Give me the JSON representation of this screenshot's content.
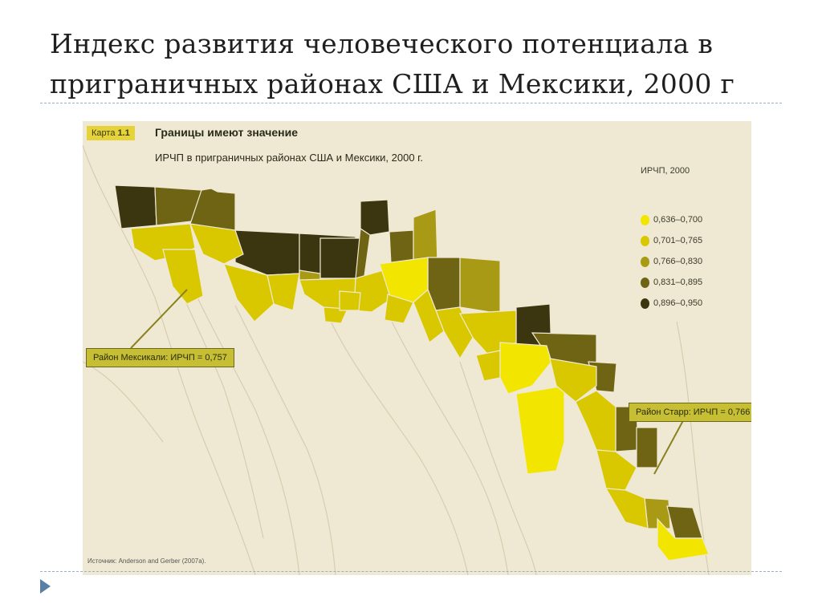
{
  "slide": {
    "title_line1": "Индекс развития человеческого потенциала в",
    "title_line2": "приграничных районах США и Мексики, 2000 г"
  },
  "map": {
    "tag_prefix": "Карта",
    "tag_number": "1.1",
    "heading": "Границы имеют значение",
    "subheading": "ИРЧП в приграничных районах США и Мексики, 2000 г.",
    "legend": {
      "title": "ИРЧП, 2000",
      "items": [
        {
          "label": "0,636–0,700",
          "color": "#f2e600"
        },
        {
          "label": "0,701–0,765",
          "color": "#d9c800"
        },
        {
          "label": "0,766–0,830",
          "color": "#a89a14"
        },
        {
          "label": "0,831–0,895",
          "color": "#6e6414"
        },
        {
          "label": "0,896–0,950",
          "color": "#3c3610"
        }
      ]
    },
    "callouts": {
      "mexicali": "Район Мексикали: ИРЧП = 0,757",
      "starr": "Район Старр: ИРЧП = 0,766"
    },
    "source": "Источник: Anderson and Gerber (2007a).",
    "colors": {
      "background": "#efe9d3",
      "land_lines": "#d8ccb0",
      "callout_fill": "#c7bf33"
    }
  }
}
